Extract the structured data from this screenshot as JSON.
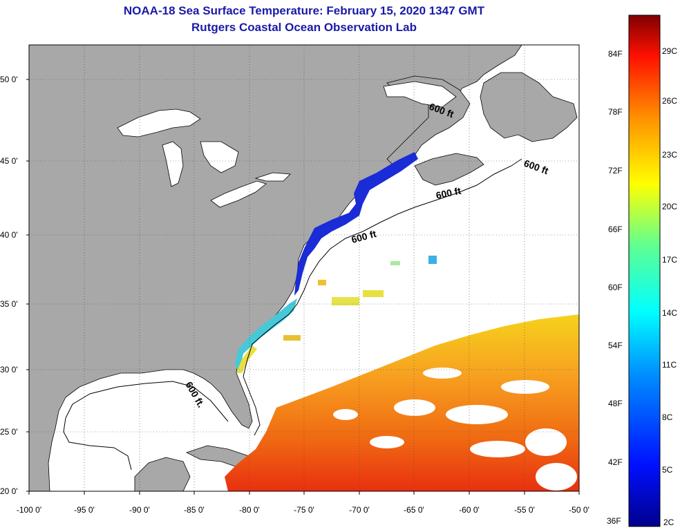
{
  "title": {
    "line1": "NOAA-18 Sea Surface Temperature:  February 15, 2020 1347 GMT",
    "line2": "Rutgers Coastal Ocean Observation Lab"
  },
  "map": {
    "lat_labels": [
      "50 0'",
      "45 0'",
      "40 0'",
      "35 0'",
      "30 0'",
      "25 0'",
      "20 0'"
    ],
    "lon_labels": [
      "-100 0'",
      "-95 0'",
      "-90 0'",
      "-85 0'",
      "-80 0'",
      "-75 0'",
      "-70 0'",
      "-65 0'",
      "-60 0'",
      "-55 0'",
      "-50 0'"
    ],
    "contour_label": "600 ft",
    "contour_label_gulf": "600 ft."
  },
  "colorbar": {
    "f_labels": [
      "84F",
      "78F",
      "72F",
      "66F",
      "60F",
      "54F",
      "48F",
      "42F",
      "36F"
    ],
    "c_labels": [
      "29C",
      "26C",
      "23C",
      "20C",
      "17C",
      "14C",
      "11C",
      "8C",
      "5C",
      "2C"
    ]
  },
  "colors": {
    "land": "#a8a8a8",
    "title": "#1a1aa8",
    "cold": "#1a2bd8",
    "warm": "#f07a10"
  }
}
